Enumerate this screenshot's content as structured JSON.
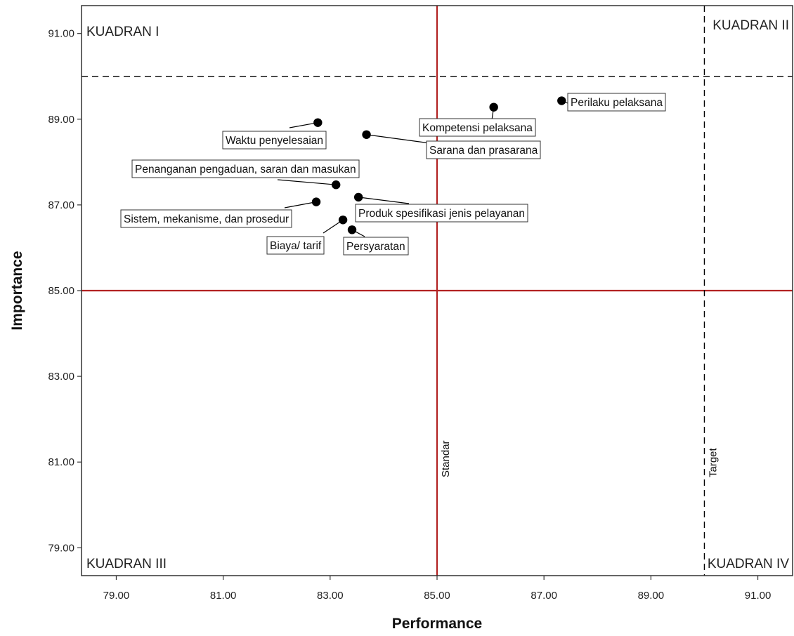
{
  "chart_data": {
    "type": "scatter",
    "title": "",
    "xlabel": "Performance",
    "ylabel": "Importance",
    "xlim": [
      78.35,
      91.65
    ],
    "ylim": [
      78.35,
      91.65
    ],
    "x_ticks": [
      "79.00",
      "81.00",
      "83.00",
      "85.00",
      "87.00",
      "89.00",
      "91.00"
    ],
    "y_ticks": [
      "79.00",
      "81.00",
      "83.00",
      "85.00",
      "87.00",
      "89.00",
      "91.00"
    ],
    "grid": false,
    "points": [
      {
        "label": "Perilaku pelaksana",
        "x": 87.33,
        "y": 89.43
      },
      {
        "label": "Kompetensi pelaksana",
        "x": 86.06,
        "y": 89.28
      },
      {
        "label": "Waktu penyelesaian",
        "x": 82.77,
        "y": 88.92
      },
      {
        "label": "Sarana dan prasarana",
        "x": 83.68,
        "y": 88.64
      },
      {
        "label": "Penanganan pengaduan, saran dan masukan",
        "x": 83.11,
        "y": 87.47
      },
      {
        "label": "Produk spesifikasi jenis pelayanan",
        "x": 83.53,
        "y": 87.18
      },
      {
        "label": "Sistem, mekanisme, dan prosedur",
        "x": 82.74,
        "y": 87.07
      },
      {
        "label": "Biaya/ tarif",
        "x": 83.24,
        "y": 86.65
      },
      {
        "label": "Persyaratan",
        "x": 83.41,
        "y": 86.42
      }
    ],
    "reference_lines": [
      {
        "label": "Standar",
        "axis": "x",
        "value": 85.0,
        "style": "solid",
        "color": "#b22222"
      },
      {
        "label": "",
        "axis": "y",
        "value": 85.0,
        "style": "solid",
        "color": "#b22222"
      },
      {
        "label": "Target",
        "axis": "x",
        "value": 90.0,
        "style": "dashed",
        "color": "#000000"
      },
      {
        "label": "",
        "axis": "y",
        "value": 90.0,
        "style": "dashed",
        "color": "#000000"
      }
    ],
    "quadrant_labels": {
      "top_left": "KUADRAN I",
      "top_right": "KUADRAN II",
      "bottom_left": "KUADRAN III",
      "bottom_right": "KUADRAN IV"
    }
  }
}
